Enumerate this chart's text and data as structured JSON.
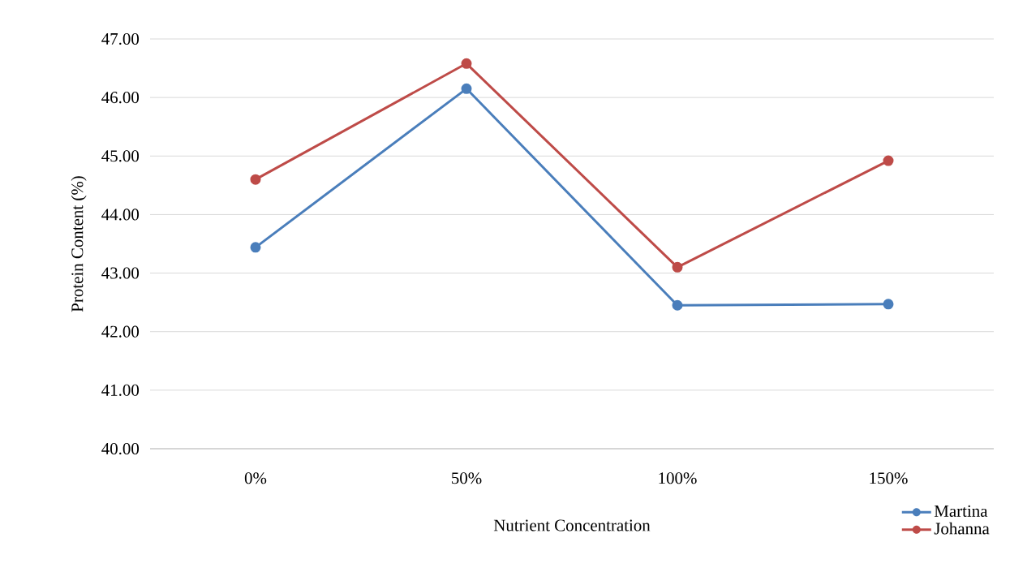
{
  "chart_data": {
    "type": "line",
    "xlabel": "Nutrient Concentration",
    "ylabel": "Protein Content (%)",
    "categories": [
      "0%",
      "50%",
      "100%",
      "150%"
    ],
    "series": [
      {
        "name": "Martina",
        "color": "#4a7ebb",
        "values": [
          43.44,
          46.15,
          42.45,
          42.47
        ]
      },
      {
        "name": "Johanna",
        "color": "#be4b48",
        "values": [
          44.6,
          46.58,
          43.1,
          44.92
        ]
      }
    ],
    "ylim": [
      40,
      47
    ],
    "yticks": [
      {
        "value": 40,
        "label": "40.00"
      },
      {
        "value": 41,
        "label": "41.00"
      },
      {
        "value": 42,
        "label": "42.00"
      },
      {
        "value": 43,
        "label": "43.00"
      },
      {
        "value": 44,
        "label": "44.00"
      },
      {
        "value": 45,
        "label": "45.00"
      },
      {
        "value": 46,
        "label": "46.00"
      },
      {
        "value": 47,
        "label": "47.00"
      }
    ],
    "grid": "y",
    "legend": "bottom right",
    "marker": "circle",
    "line_style": "solid"
  }
}
